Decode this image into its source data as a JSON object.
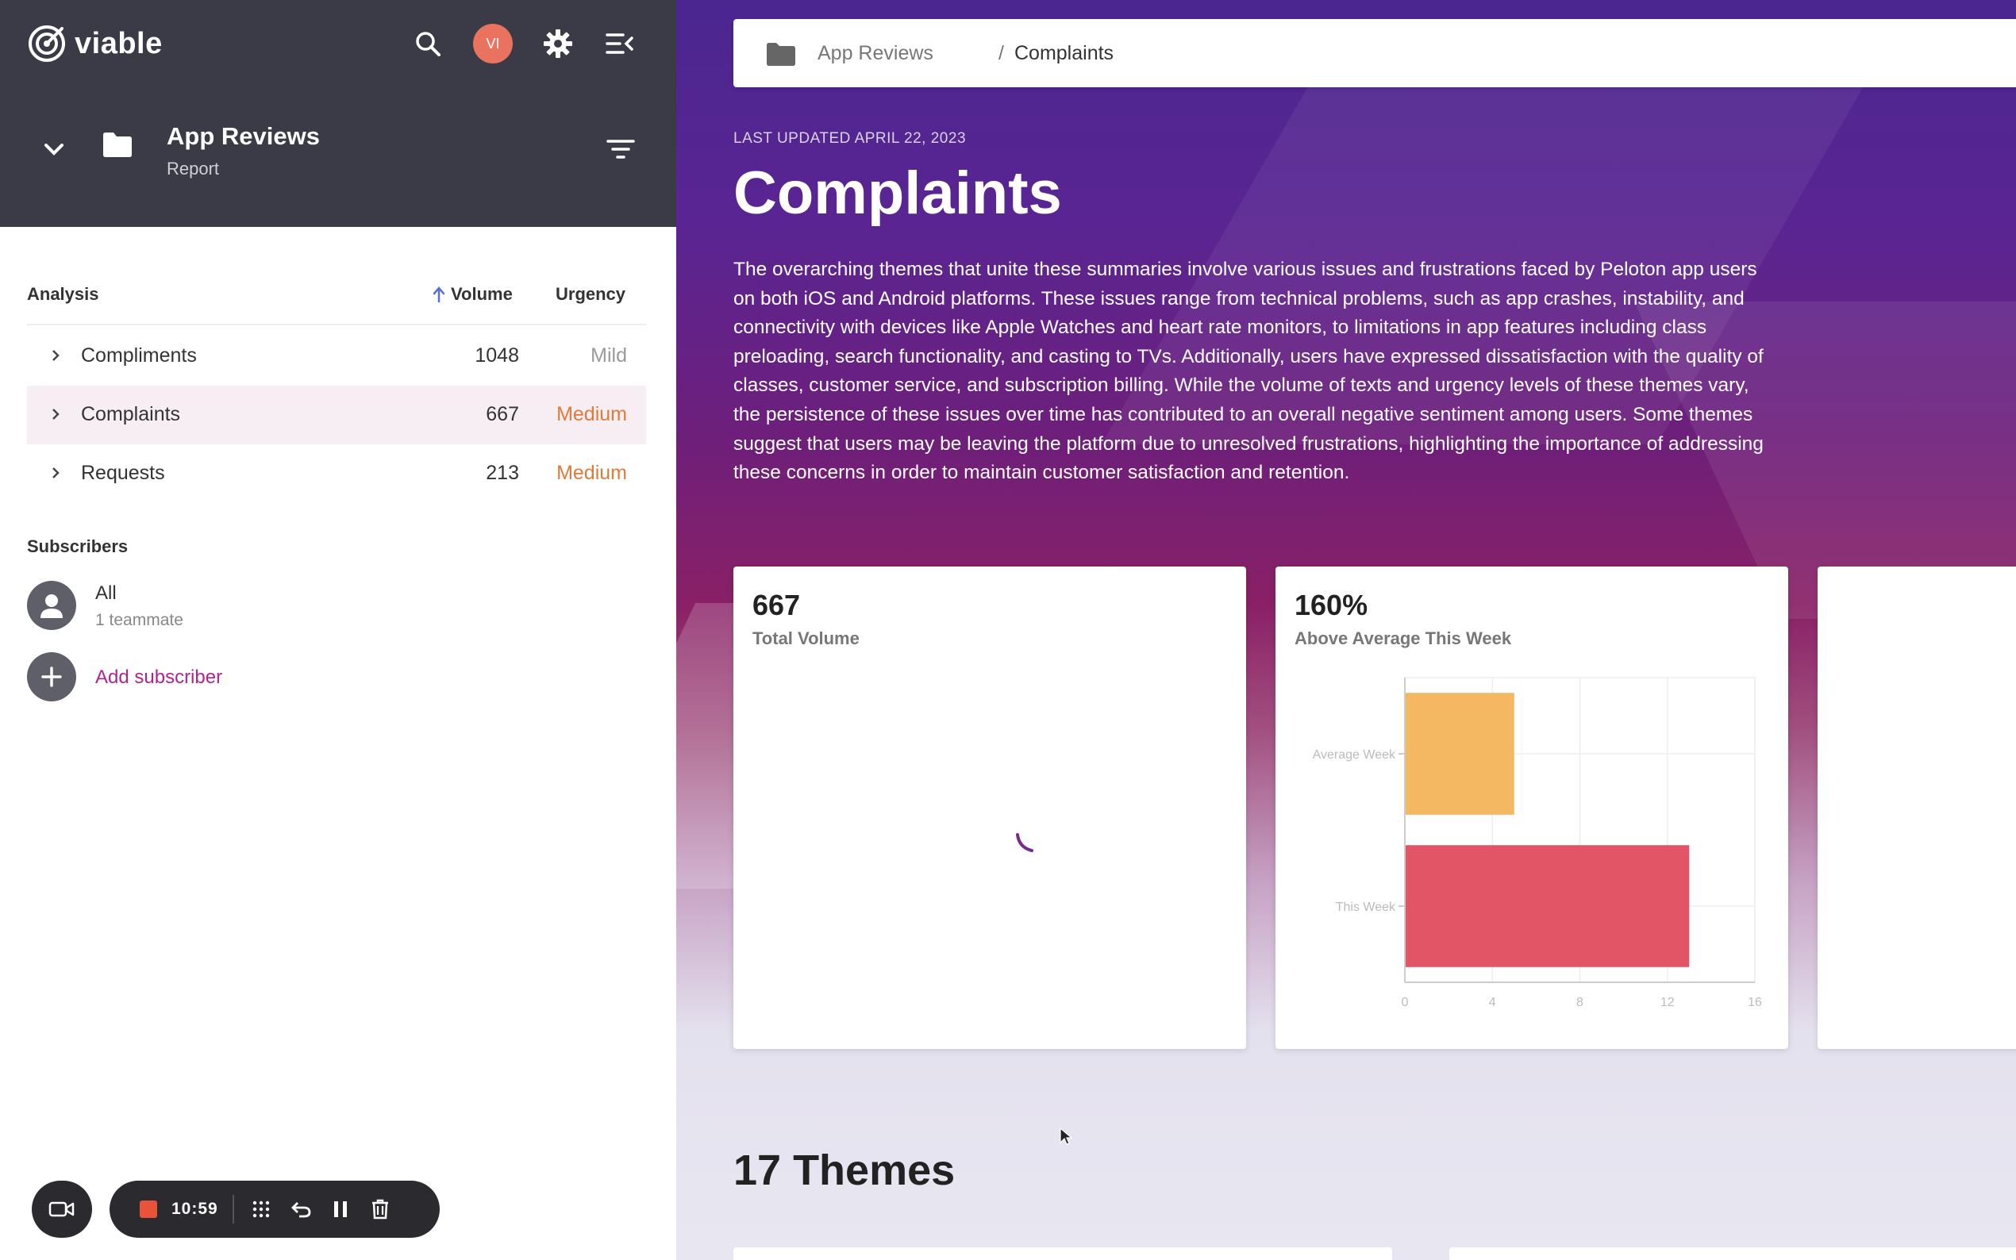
{
  "app": {
    "logo_text": "viable"
  },
  "header": {
    "avatar_initials": "VI"
  },
  "project": {
    "title": "App Reviews",
    "subtitle": "Report"
  },
  "analysis": {
    "header_label": "Analysis",
    "volume_label": "Volume",
    "urgency_label": "Urgency",
    "rows": [
      {
        "label": "Compliments",
        "volume": "1048",
        "urgency": "Mild"
      },
      {
        "label": "Complaints",
        "volume": "667",
        "urgency": "Medium"
      },
      {
        "label": "Requests",
        "volume": "213",
        "urgency": "Medium"
      }
    ]
  },
  "subscribers": {
    "header_label": "Subscribers",
    "items": [
      {
        "name": "All",
        "meta": "1 teammate"
      }
    ],
    "add_label": "Add subscriber"
  },
  "recorder": {
    "time": "10:59"
  },
  "breadcrumb": {
    "parent": "App Reviews",
    "separator": "/",
    "current": "Complaints"
  },
  "main": {
    "last_updated": "LAST UPDATED APRIL 22, 2023",
    "title": "Complaints",
    "description": "The overarching themes that unite these summaries involve various issues and frustrations faced by Peloton app users on both iOS and Android platforms. These issues range from technical problems, such as app crashes, instability, and connectivity with devices like Apple Watches and heart rate monitors, to limitations in app features including class preloading, search functionality, and casting to TVs. Additionally, users have expressed dissatisfaction with the quality of classes, customer service, and subscription billing. While the volume of texts and urgency levels of these themes vary, the persistence of these issues over time has contributed to an overall negative sentiment among users. Some themes suggest that users may be leaving the platform due to unresolved frustrations, highlighting the importance of addressing these concerns in order to maintain customer satisfaction and retention.",
    "card_volume": {
      "value": "667",
      "label": "Total Volume"
    },
    "card_trend": {
      "value": "160%",
      "label": "Above Average This Week"
    },
    "themes_heading": "17 Themes"
  },
  "chart_data": {
    "type": "bar",
    "orientation": "horizontal",
    "categories": [
      "Average Week",
      "This Week"
    ],
    "values": [
      5,
      13
    ],
    "colors": [
      "#f4b762",
      "#e25566"
    ],
    "xticks": [
      "0",
      "4",
      "8",
      "12",
      "16"
    ],
    "xlim": [
      0,
      16
    ],
    "grid": true
  }
}
